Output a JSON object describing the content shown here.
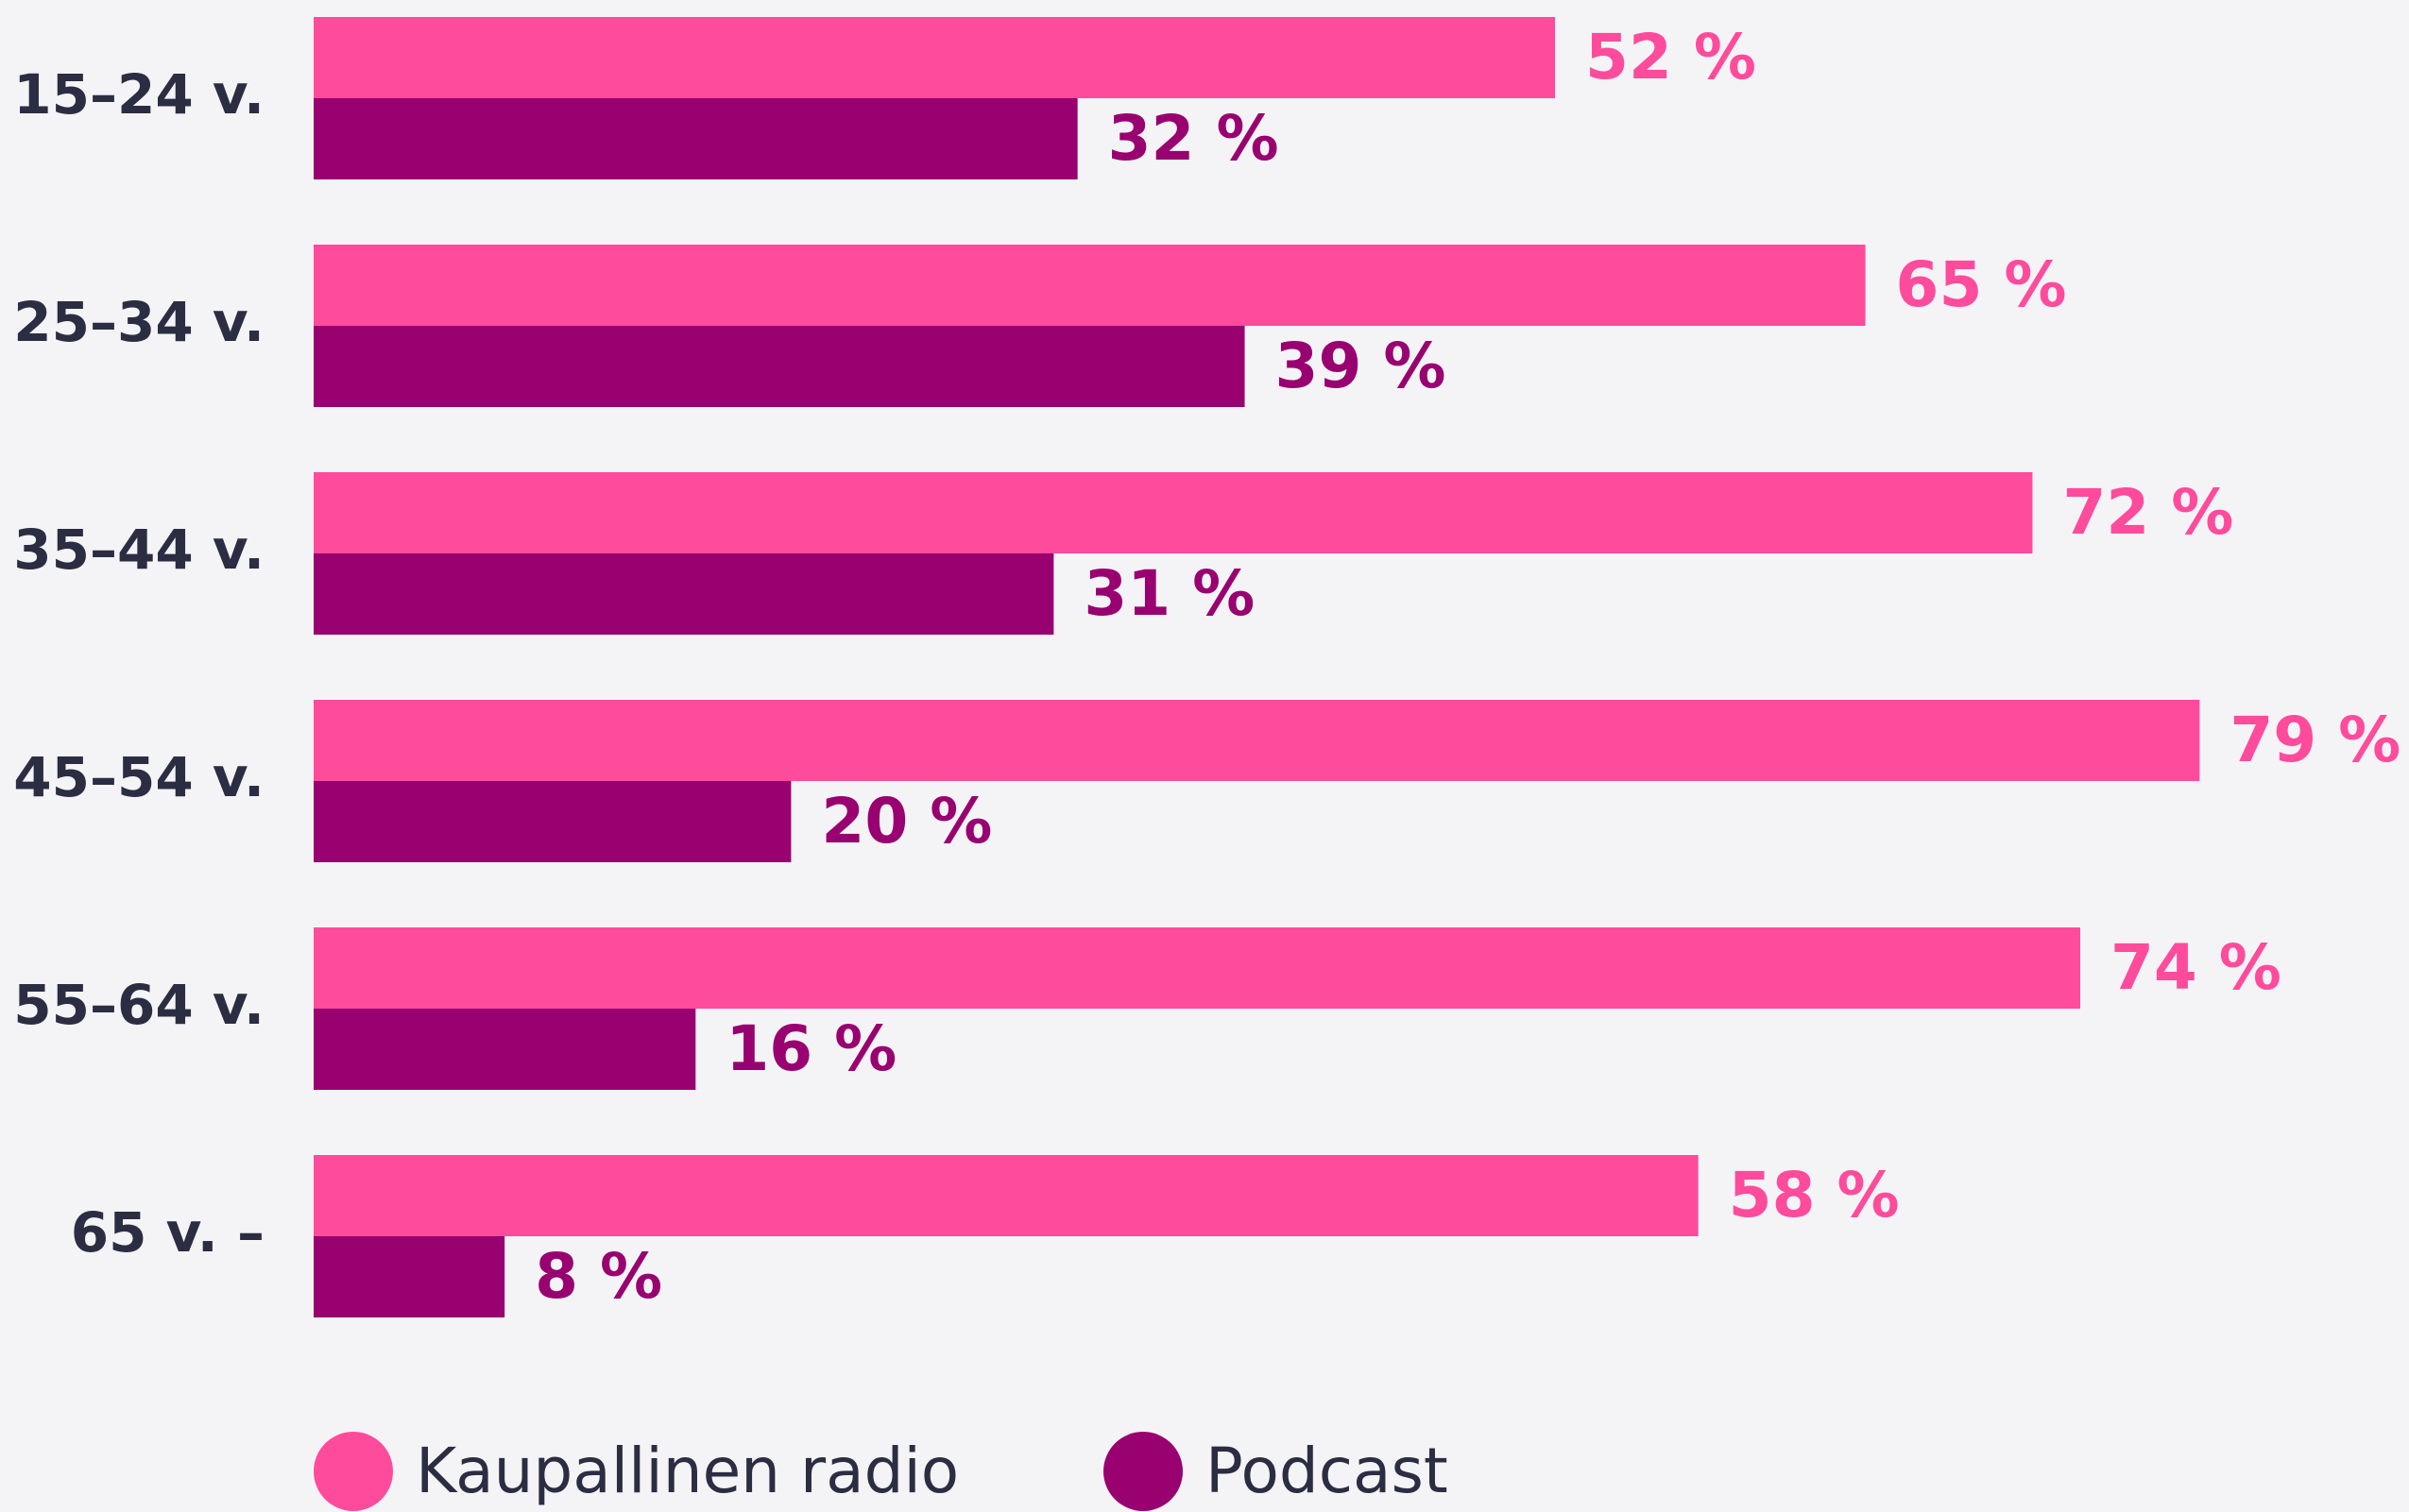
{
  "chart_data": {
    "type": "bar",
    "orientation": "horizontal",
    "categories": [
      "15–24 v.",
      "25–34 v.",
      "35–44 v.",
      "45–54 v.",
      "55–64 v.",
      "65 v. –"
    ],
    "series": [
      {
        "name": "Kaupallinen radio",
        "color": "#ff4b9b",
        "values": [
          52,
          65,
          72,
          79,
          74,
          58
        ],
        "value_labels": [
          "52 %",
          "65 %",
          "72 %",
          "79 %",
          "74 %",
          "58 %"
        ]
      },
      {
        "name": "Podcast",
        "color": "#990070",
        "values": [
          32,
          39,
          31,
          20,
          16,
          8
        ],
        "value_labels": [
          "32 %",
          "39 %",
          "31 %",
          "20 %",
          "16 %",
          "8 %"
        ]
      }
    ],
    "legend": "bottom-left"
  }
}
